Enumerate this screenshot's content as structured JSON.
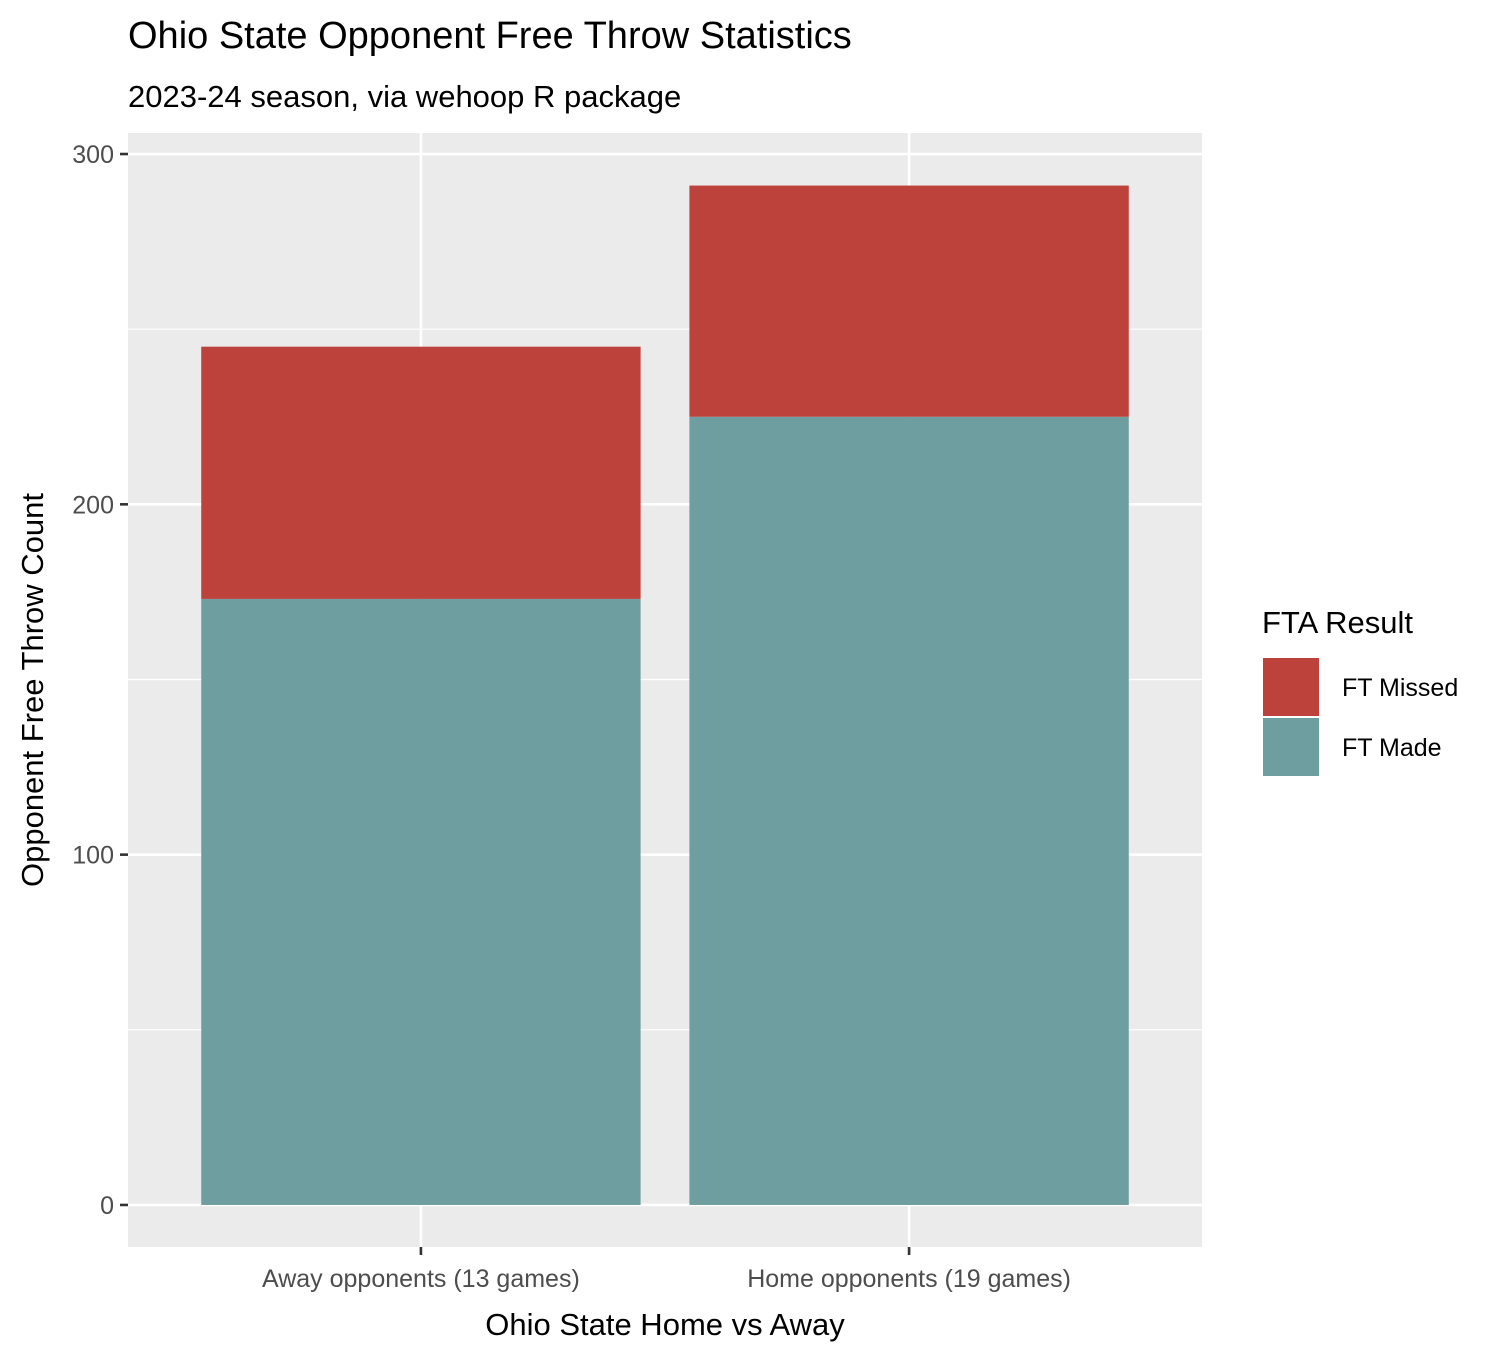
{
  "chart_data": {
    "type": "bar",
    "stacked": true,
    "title": "Ohio State Opponent Free Throw Statistics",
    "subtitle": "2023-24 season, via wehoop R package",
    "xlabel": "Ohio State Home vs Away",
    "ylabel": "Opponent Free Throw Count",
    "categories": [
      "Away opponents (13 games)",
      "Home opponents (19 games)"
    ],
    "series": [
      {
        "name": "FT Made",
        "values": [
          173,
          225
        ],
        "color": "#6e9e9f"
      },
      {
        "name": "FT Missed",
        "values": [
          72,
          66
        ],
        "color": "#bd423c"
      }
    ],
    "ylim": [
      -12,
      306
    ],
    "yticks": [
      0,
      100,
      200,
      300
    ],
    "grid": true,
    "panel_background": "#ebebeb",
    "legend": {
      "title": "FTA Result",
      "position": "right",
      "order": [
        "FT Missed",
        "FT Made"
      ]
    }
  }
}
